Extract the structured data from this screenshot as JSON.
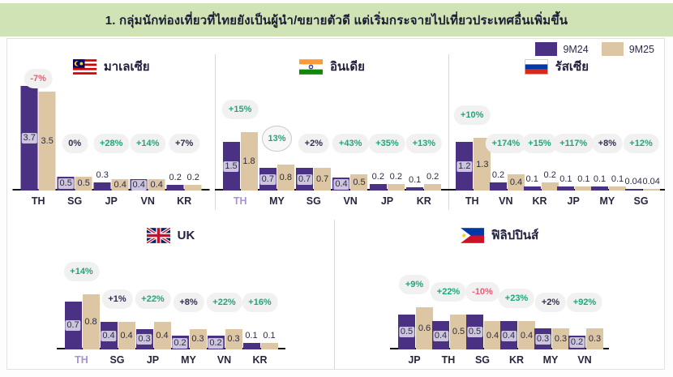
{
  "header": {
    "title": "1. กลุ่มนักท่องเที่ยวที่ไทยยังเป็นผู้นำ/ขยายตัวดี  แต่เริ่มกระจายไปเที่ยวประเทศอื่นเพิ่มขึ้น"
  },
  "legend": {
    "items": [
      {
        "label": "9M24",
        "color": "#4a3184"
      },
      {
        "label": "9M25",
        "color": "#dcc6a4"
      }
    ]
  },
  "colors": {
    "bar_9m24": "#4a3184",
    "bar_9m25": "#dcc6a4",
    "growth_positive": "#1ca878",
    "growth_negative": "#f05a74",
    "growth_neutral": "#2f2f52",
    "header_band": "#cfe3b4"
  },
  "chart_data": [
    {
      "type": "bar",
      "title": "มาเลเซีย",
      "flag": "malaysia-flag",
      "categories": [
        "TH",
        "SG",
        "JP",
        "VN",
        "KR"
      ],
      "series": [
        {
          "name": "9M24",
          "values": [
            3.7,
            0.5,
            0.3,
            0.4,
            0.2
          ]
        },
        {
          "name": "9M25",
          "values": [
            3.5,
            0.5,
            0.4,
            0.4,
            0.2
          ]
        }
      ],
      "growth": [
        {
          "label": "-7%",
          "tone": "red"
        },
        {
          "label": "0%",
          "tone": "dark"
        },
        {
          "label": "+28%",
          "tone": "green"
        },
        {
          "label": "+14%",
          "tone": "green"
        },
        {
          "label": "+7%",
          "tone": "dark"
        }
      ],
      "highlight_category": ""
    },
    {
      "type": "bar",
      "title": "อินเดีย",
      "flag": "india-flag",
      "categories": [
        "TH",
        "MY",
        "SG",
        "VN",
        "JP",
        "KR"
      ],
      "series": [
        {
          "name": "9M24",
          "values": [
            1.5,
            0.7,
            0.7,
            0.4,
            0.2,
            0.1
          ]
        },
        {
          "name": "9M25",
          "values": [
            1.8,
            0.8,
            0.7,
            0.5,
            0.2,
            0.2
          ]
        }
      ],
      "growth": [
        {
          "label": "+15%",
          "tone": "green"
        },
        {
          "label": "13%",
          "tone": "green",
          "ring": true
        },
        {
          "label": "+2%",
          "tone": "dark"
        },
        {
          "label": "+43%",
          "tone": "green"
        },
        {
          "label": "+35%",
          "tone": "green"
        },
        {
          "label": "+13%",
          "tone": "green"
        }
      ],
      "highlight_category": "TH"
    },
    {
      "type": "bar",
      "title": "รัสเซีย",
      "flag": "russia-flag",
      "categories": [
        "TH",
        "VN",
        "KR",
        "JP",
        "MY",
        "SG"
      ],
      "series": [
        {
          "name": "9M24",
          "values": [
            1.2,
            0.2,
            0.1,
            0.1,
            0.1,
            0.04
          ]
        },
        {
          "name": "9M25",
          "values": [
            1.3,
            0.4,
            0.2,
            0.1,
            0.1,
            0.04
          ]
        }
      ],
      "growth": [
        {
          "label": "+10%",
          "tone": "green"
        },
        {
          "label": "+174%",
          "tone": "green"
        },
        {
          "label": "+15%",
          "tone": "green"
        },
        {
          "label": "+117%",
          "tone": "green"
        },
        {
          "label": "+8%",
          "tone": "dark"
        },
        {
          "label": "+12%",
          "tone": "green"
        }
      ],
      "highlight_category": ""
    },
    {
      "type": "bar",
      "title": "UK",
      "flag": "uk-flag",
      "categories": [
        "TH",
        "SG",
        "JP",
        "MY",
        "VN",
        "KR"
      ],
      "series": [
        {
          "name": "9M24",
          "values": [
            0.7,
            0.4,
            0.3,
            0.2,
            0.2,
            0.1
          ]
        },
        {
          "name": "9M25",
          "values": [
            0.8,
            0.4,
            0.4,
            0.3,
            0.3,
            0.1
          ]
        }
      ],
      "growth": [
        {
          "label": "+14%",
          "tone": "green"
        },
        {
          "label": "+1%",
          "tone": "dark"
        },
        {
          "label": "+22%",
          "tone": "green"
        },
        {
          "label": "+8%",
          "tone": "dark"
        },
        {
          "label": "+22%",
          "tone": "green"
        },
        {
          "label": "+16%",
          "tone": "green"
        }
      ],
      "highlight_category": "TH"
    },
    {
      "type": "bar",
      "title": "ฟิลิปปินส์",
      "flag": "philippines-flag",
      "categories": [
        "JP",
        "TH",
        "SG",
        "KR",
        "MY",
        "VN"
      ],
      "series": [
        {
          "name": "9M24",
          "values": [
            0.5,
            0.4,
            0.5,
            0.4,
            0.3,
            0.2
          ]
        },
        {
          "name": "9M25",
          "values": [
            0.6,
            0.5,
            0.4,
            0.4,
            0.3,
            0.3
          ]
        }
      ],
      "growth": [
        {
          "label": "+9%",
          "tone": "green"
        },
        {
          "label": "+22%",
          "tone": "green"
        },
        {
          "label": "-10%",
          "tone": "red"
        },
        {
          "label": "+23%",
          "tone": "green"
        },
        {
          "label": "+2%",
          "tone": "dark"
        },
        {
          "label": "+92%",
          "tone": "green"
        }
      ],
      "highlight_category": ""
    }
  ]
}
